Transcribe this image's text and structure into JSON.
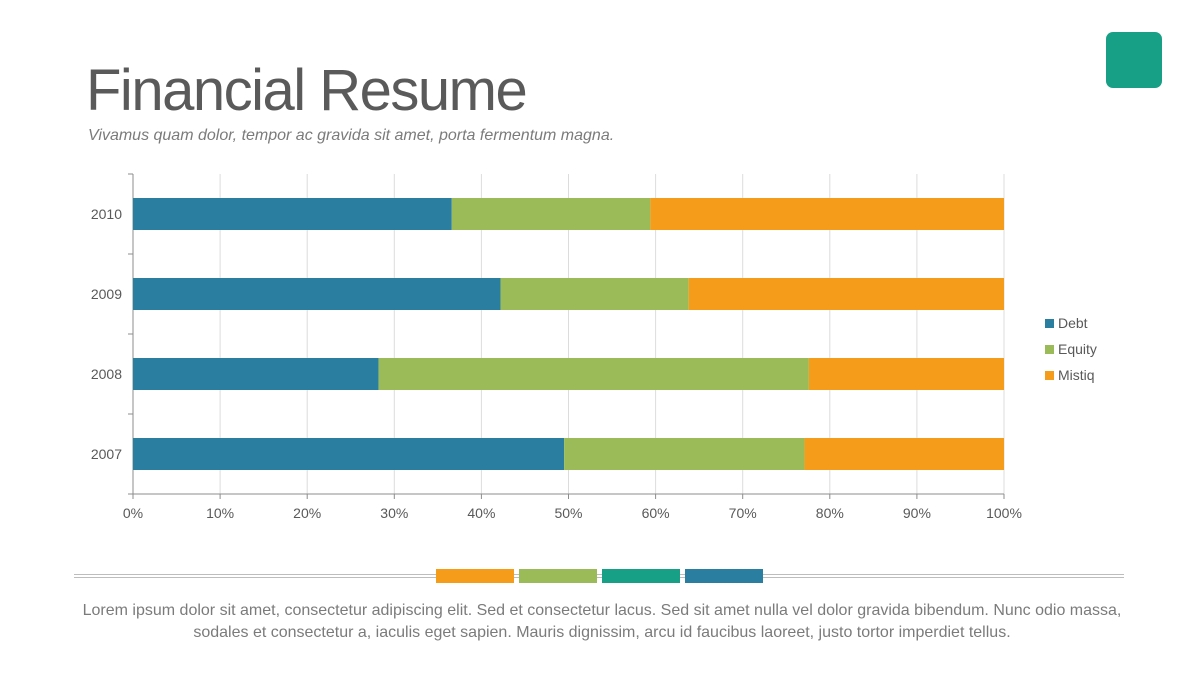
{
  "slide": {
    "title": "Financial Resume",
    "subtitle": "Vivamus quam dolor, tempor ac gravida sit amet, porta fermentum magna.",
    "body": "Lorem ipsum dolor sit amet, consectetur adipiscing elit. Sed et consectetur lacus. Sed sit amet nulla vel dolor gravida bibendum. Nunc odio massa, sodales et consectetur a, iaculis eget sapien. Mauris dignissim, arcu id faucibus laoreet, justo tortor imperdiet tellus.",
    "accent_color": "#17a085",
    "strip_colors": [
      "#f59d1a",
      "#9bbb59",
      "#17a085",
      "#2a7fa0"
    ]
  },
  "chart_data": {
    "type": "bar",
    "orientation": "horizontal",
    "stacked": "percent",
    "categories": [
      "2007",
      "2008",
      "2009",
      "2010"
    ],
    "series": [
      {
        "name": "Debt",
        "color": "#2a7fa0",
        "values": [
          49.5,
          28.2,
          42.2,
          36.6
        ]
      },
      {
        "name": "Equity",
        "color": "#9bbb59",
        "values": [
          27.6,
          49.4,
          21.6,
          22.8
        ]
      },
      {
        "name": "Mistiq",
        "color": "#f59d1a",
        "values": [
          22.9,
          22.4,
          36.2,
          40.6
        ]
      }
    ],
    "xlim": [
      0,
      100
    ],
    "xticks": [
      "0%",
      "10%",
      "20%",
      "30%",
      "40%",
      "50%",
      "60%",
      "70%",
      "80%",
      "90%",
      "100%"
    ],
    "grid": true,
    "legend_position": "right"
  }
}
